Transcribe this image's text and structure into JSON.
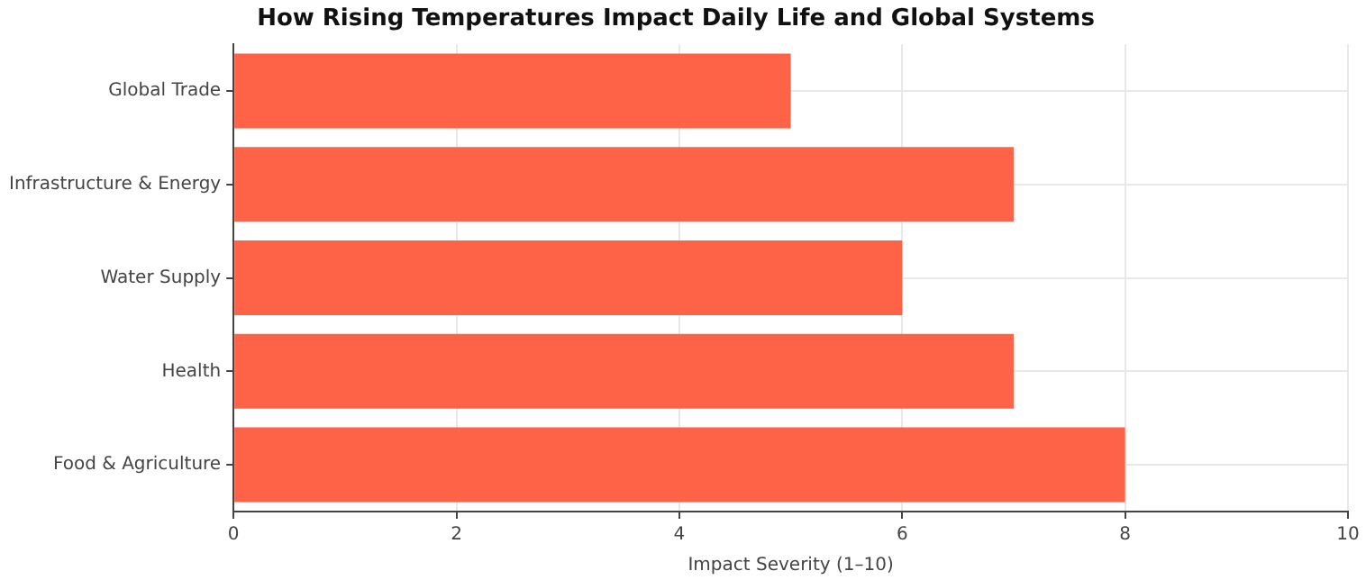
{
  "chart_data": {
    "type": "bar",
    "orientation": "horizontal",
    "title": "How Rising Temperatures Impact Daily Life and Global Systems",
    "xlabel": "Impact Severity (1–10)",
    "categories": [
      "Global Trade",
      "Infrastructure & Energy",
      "Water Supply",
      "Health",
      "Food & Agriculture"
    ],
    "values": [
      5,
      7,
      6,
      7,
      8
    ],
    "color": "#ff6347",
    "xlim": [
      0,
      10
    ],
    "xticks": [
      0,
      2,
      4,
      6,
      8,
      10
    ],
    "grid": true
  }
}
